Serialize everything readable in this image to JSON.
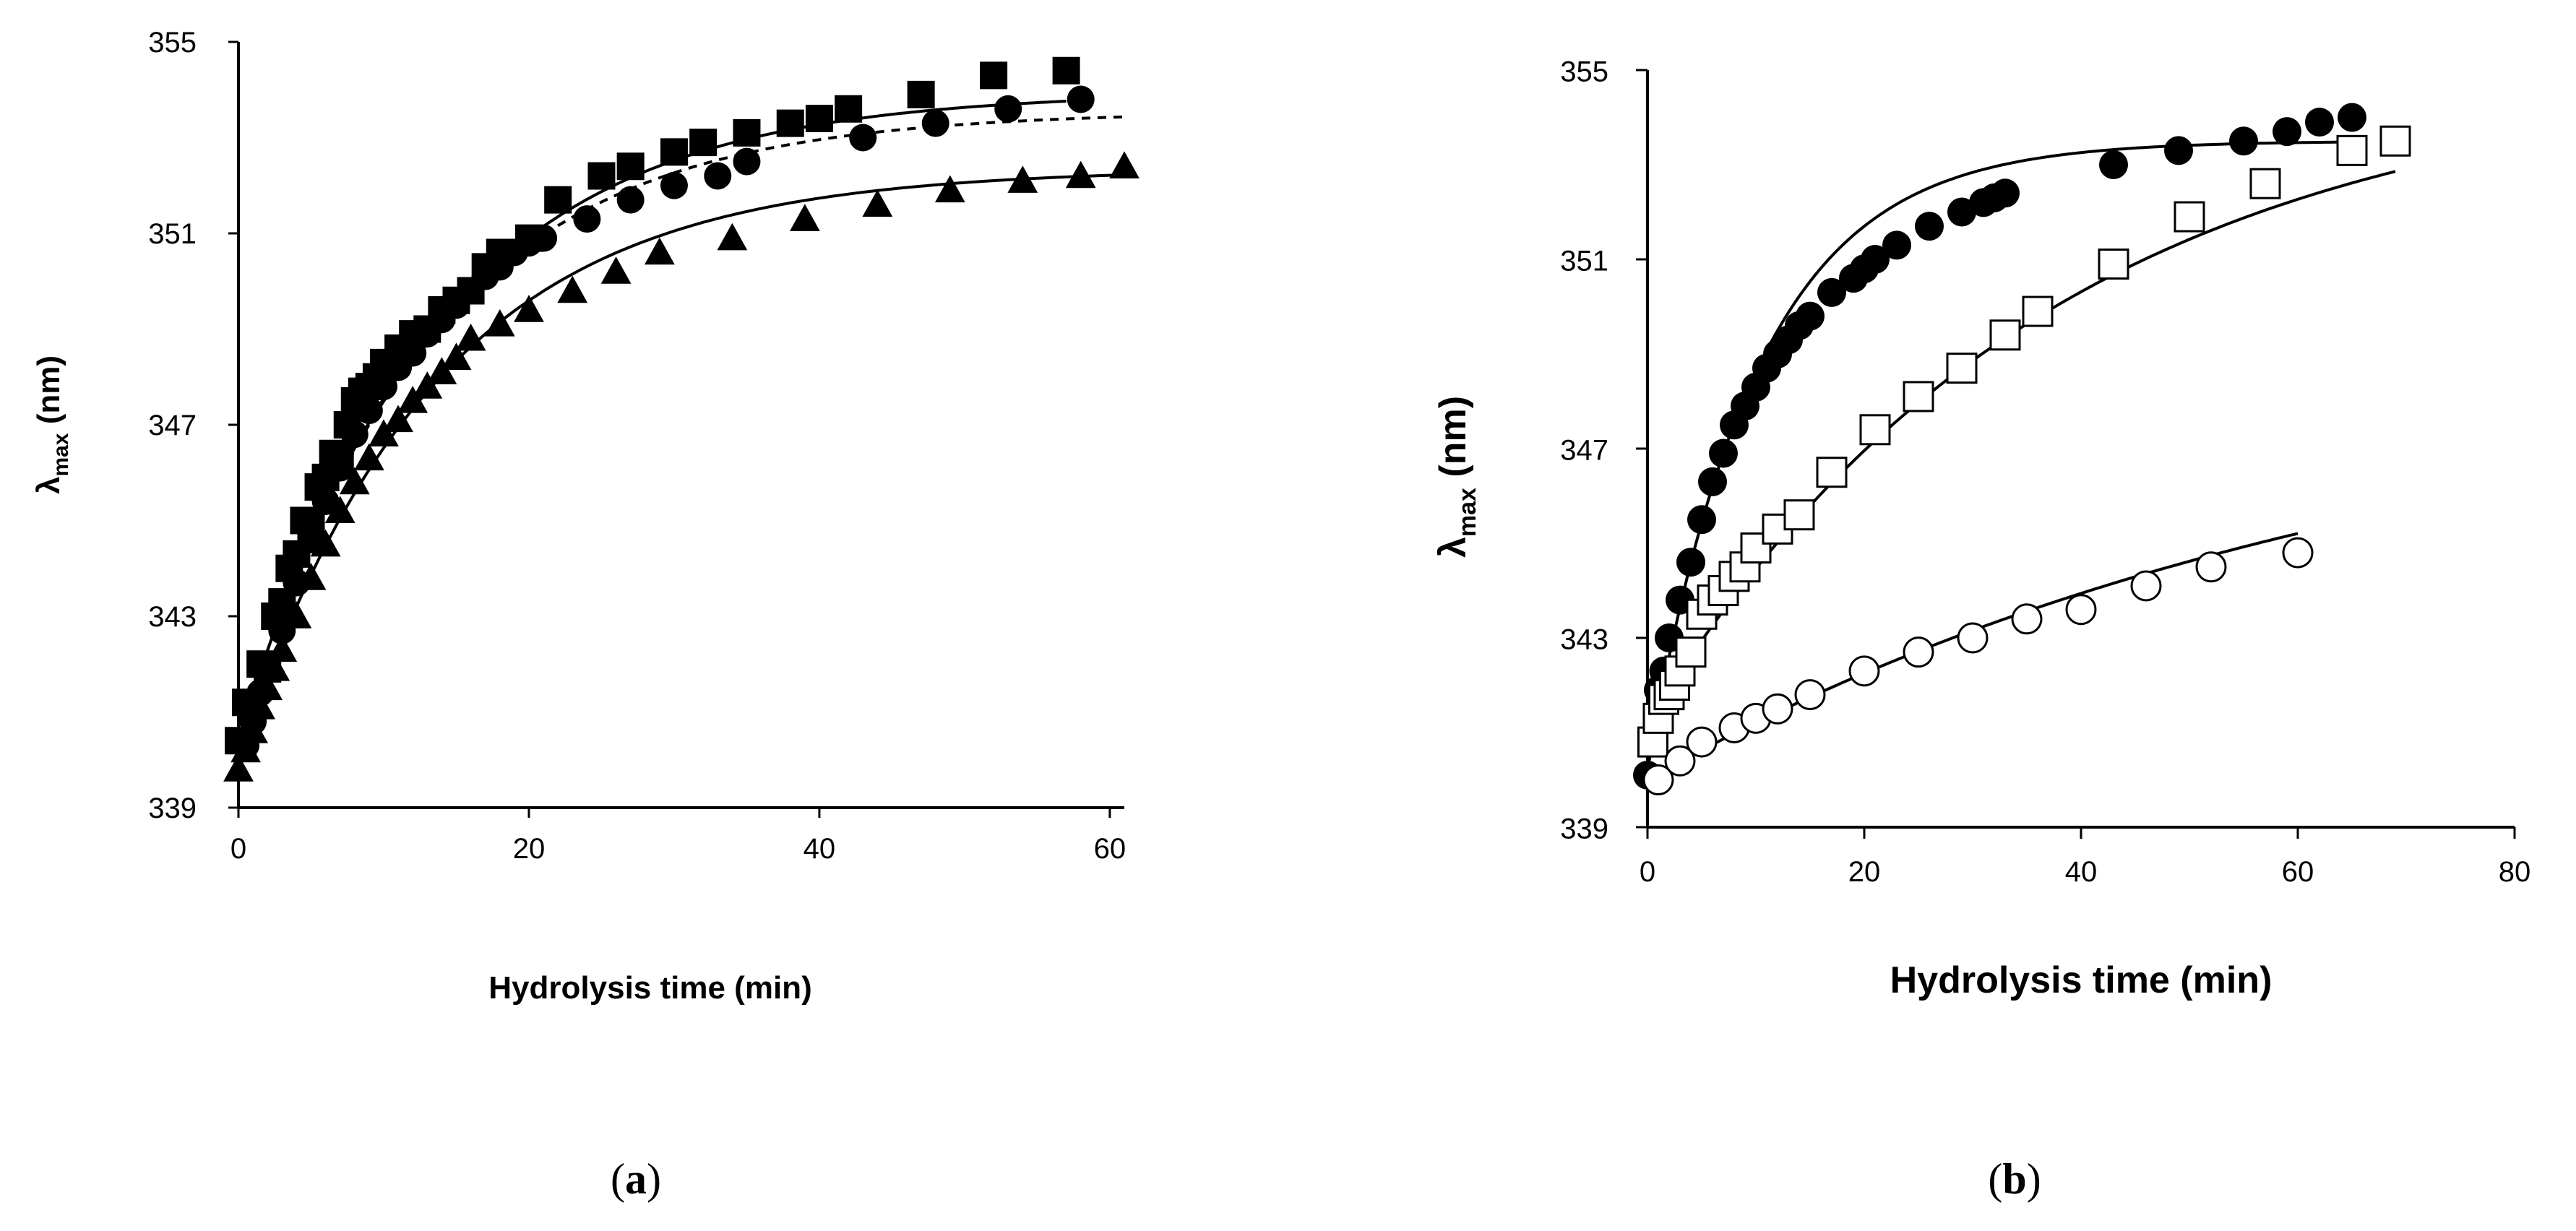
{
  "chart_data": [
    {
      "panel": "a",
      "type": "scatter",
      "caption": "a",
      "xlabel": "Hydrolysis time (min)",
      "ylabel_main": "λ",
      "ylabel_sub": "max",
      "ylabel_unit": " (nm)",
      "xlim": [
        0,
        61
      ],
      "ylim": [
        339,
        355
      ],
      "xticks": [
        0,
        20,
        40,
        60
      ],
      "yticks": [
        339,
        343,
        347,
        351,
        355
      ],
      "series": [
        {
          "name": "squares",
          "marker": "square-filled",
          "x": [
            0,
            0.5,
            1,
            1.5,
            2,
            2.5,
            3,
            3.5,
            4,
            4.5,
            5,
            5.5,
            6,
            6.5,
            7,
            7.5,
            8,
            8.5,
            9,
            9.5,
            10,
            11,
            12,
            13,
            14,
            15,
            16,
            17,
            18,
            20,
            22,
            25,
            27,
            30,
            32,
            35,
            38,
            40,
            42,
            47,
            52,
            57
          ],
          "y": [
            340.4,
            341.2,
            341.1,
            342.0,
            341.9,
            343.0,
            343.3,
            344.0,
            344.3,
            345.0,
            344.9,
            345.7,
            345.9,
            346.4,
            346.3,
            347.0,
            347.5,
            347.7,
            347.8,
            348.0,
            348.3,
            348.6,
            348.9,
            349.0,
            349.4,
            349.6,
            349.8,
            350.3,
            350.6,
            350.9,
            351.7,
            352.2,
            352.4,
            352.7,
            352.9,
            353.1,
            353.3,
            353.4,
            353.6,
            353.9,
            354.3,
            354.4
          ]
        },
        {
          "name": "circles",
          "marker": "circle-filled",
          "x": [
            0.5,
            1,
            1.5,
            2,
            3,
            4,
            5,
            6,
            7,
            8,
            9,
            10,
            11,
            12,
            13,
            14,
            15,
            16,
            17,
            18,
            19,
            20,
            21,
            24,
            27,
            30,
            33,
            35,
            43,
            48,
            53,
            58
          ],
          "y": [
            340.3,
            340.8,
            341.4,
            341.9,
            342.7,
            343.7,
            344.6,
            345.4,
            346.1,
            346.8,
            347.3,
            347.8,
            348.2,
            348.5,
            348.9,
            349.2,
            349.5,
            349.8,
            350.1,
            350.3,
            350.6,
            350.8,
            350.9,
            351.3,
            351.7,
            352.0,
            352.2,
            352.5,
            353.0,
            353.3,
            353.6,
            353.8
          ]
        },
        {
          "name": "triangles",
          "marker": "triangle-filled",
          "x": [
            0,
            0.5,
            1,
            1.5,
            2,
            2.5,
            3,
            4,
            5,
            6,
            7,
            8,
            9,
            10,
            11,
            12,
            13,
            14,
            15,
            16,
            18,
            20,
            23,
            26,
            29,
            34,
            39,
            44,
            49,
            54,
            58,
            61
          ],
          "y": [
            339.8,
            340.2,
            340.6,
            341.1,
            341.5,
            341.9,
            342.3,
            343.0,
            343.8,
            344.5,
            345.2,
            345.8,
            346.3,
            346.8,
            347.1,
            347.5,
            347.8,
            348.1,
            348.4,
            348.8,
            349.1,
            349.4,
            349.8,
            350.2,
            350.6,
            350.9,
            351.3,
            351.6,
            351.9,
            352.1,
            352.2,
            352.4
          ]
        }
      ],
      "fits": [
        {
          "name": "fit-squares",
          "style": "solid",
          "a": 340.4,
          "b": 353.95,
          "k": 0.075,
          "x0": 0,
          "x1": 57
        },
        {
          "name": "fit-circles",
          "style": "dashed",
          "a": 340.4,
          "b": 353.55,
          "k": 0.0775,
          "x0": 0,
          "x1": 61
        },
        {
          "name": "fit-triangles",
          "style": "solid",
          "a": 340.0,
          "b": 352.35,
          "k": 0.075,
          "x0": 0,
          "x1": 61
        }
      ]
    },
    {
      "panel": "b",
      "type": "scatter",
      "caption": "b",
      "xlabel": "Hydrolysis time (min)",
      "ylabel_main": "λ",
      "ylabel_sub": "max",
      "ylabel_unit": " (nm)",
      "xlim": [
        0,
        80
      ],
      "ylim": [
        339,
        355
      ],
      "xticks": [
        0,
        20,
        40,
        60,
        80
      ],
      "yticks": [
        339,
        343,
        347,
        351,
        355
      ],
      "series": [
        {
          "name": "filled-circles",
          "marker": "circle-filled",
          "x": [
            0,
            0.5,
            1,
            1.5,
            2,
            3,
            4,
            5,
            6,
            7,
            8,
            9,
            10,
            11,
            12,
            13,
            14,
            15,
            17,
            19,
            20,
            21,
            23,
            26,
            29,
            31,
            32,
            33,
            43,
            49,
            55,
            59,
            62,
            65
          ],
          "y": [
            340.1,
            340.8,
            341.9,
            342.3,
            343.0,
            343.8,
            344.6,
            345.5,
            346.3,
            346.9,
            347.5,
            347.9,
            348.3,
            348.7,
            349.0,
            349.3,
            349.6,
            349.8,
            350.3,
            350.6,
            350.8,
            351.0,
            351.3,
            351.7,
            352.0,
            352.2,
            352.3,
            352.4,
            353.0,
            353.3,
            353.5,
            353.7,
            353.9,
            354.0
          ]
        },
        {
          "name": "open-squares",
          "marker": "square-open",
          "x": [
            0.5,
            1,
            1.5,
            2,
            2.5,
            3,
            4,
            5,
            6,
            7,
            8,
            9,
            10,
            12,
            14,
            17,
            21,
            25,
            29,
            33,
            36,
            43,
            50,
            57,
            65,
            69
          ],
          "y": [
            340.8,
            341.3,
            341.7,
            341.8,
            342.0,
            342.3,
            342.7,
            343.5,
            343.8,
            344.0,
            344.3,
            344.5,
            344.9,
            345.3,
            345.6,
            346.5,
            347.4,
            348.1,
            348.7,
            349.4,
            349.9,
            350.9,
            351.9,
            352.6,
            353.3,
            353.5
          ]
        },
        {
          "name": "open-circles",
          "marker": "circle-open",
          "x": [
            1,
            3,
            5,
            8,
            10,
            12,
            15,
            20,
            25,
            30,
            35,
            40,
            46,
            52,
            60
          ],
          "y": [
            340.0,
            340.4,
            340.8,
            341.1,
            341.3,
            341.5,
            341.8,
            342.3,
            342.7,
            343.0,
            343.4,
            343.6,
            344.1,
            344.5,
            344.8
          ]
        }
      ],
      "fits": [
        {
          "name": "fit-filled-circles",
          "style": "solid",
          "a": 340.2,
          "b": 353.5,
          "k": 0.1,
          "x0": 0,
          "x1": 65
        },
        {
          "name": "fit-open-squares",
          "style": "solid",
          "a": 341.2,
          "b": 355.0,
          "k": 0.027,
          "x0": 1,
          "x1": 69
        },
        {
          "name": "fit-open-circles",
          "style": "solid",
          "a": 340.0,
          "b": 349.0,
          "k": 0.0144,
          "x0": 1,
          "x1": 60
        }
      ]
    }
  ]
}
